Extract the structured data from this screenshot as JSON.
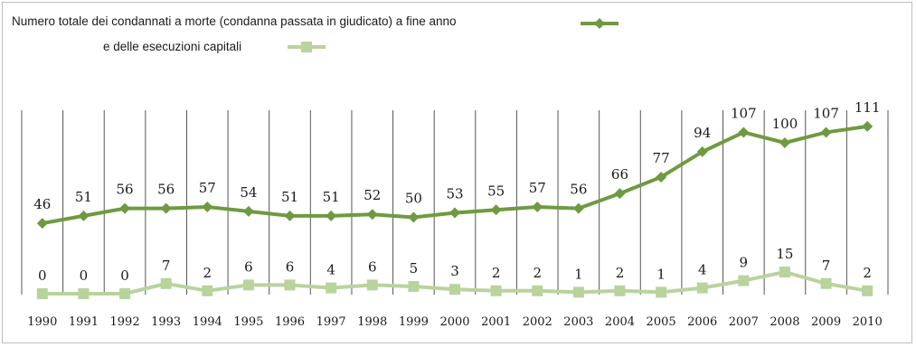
{
  "legend": {
    "series1_label": "Numero totale dei condannati a morte (condanna passata in giudicato) a fine anno",
    "series2_label": "e delle esecuzioni capitali"
  },
  "colors": {
    "series1": "#6f9a41",
    "series2": "#b9d39d",
    "grid": "#555555",
    "frame": "#bdbdbd"
  },
  "chart_data": {
    "type": "line",
    "title": "",
    "xlabel": "",
    "ylabel": "",
    "grid": "vertical",
    "legend_position": "top-left",
    "categories": [
      "1990",
      "1991",
      "1992",
      "1993",
      "1994",
      "1995",
      "1996",
      "1997",
      "1998",
      "1999",
      "2000",
      "2001",
      "2002",
      "2003",
      "2004",
      "2005",
      "2006",
      "2007",
      "2008",
      "2009",
      "2010"
    ],
    "series": [
      {
        "name": "Numero totale dei condannati a morte (condanna passata in giudicato) a fine anno",
        "marker": "diamond",
        "values": [
          46,
          51,
          56,
          56,
          57,
          54,
          51,
          51,
          52,
          50,
          53,
          55,
          57,
          56,
          66,
          77,
          94,
          107,
          100,
          107,
          111
        ]
      },
      {
        "name": "e delle esecuzioni capitali",
        "marker": "square",
        "values": [
          0,
          0,
          0,
          7,
          2,
          6,
          6,
          4,
          6,
          5,
          3,
          2,
          2,
          1,
          2,
          1,
          4,
          9,
          15,
          7,
          2
        ]
      }
    ]
  }
}
